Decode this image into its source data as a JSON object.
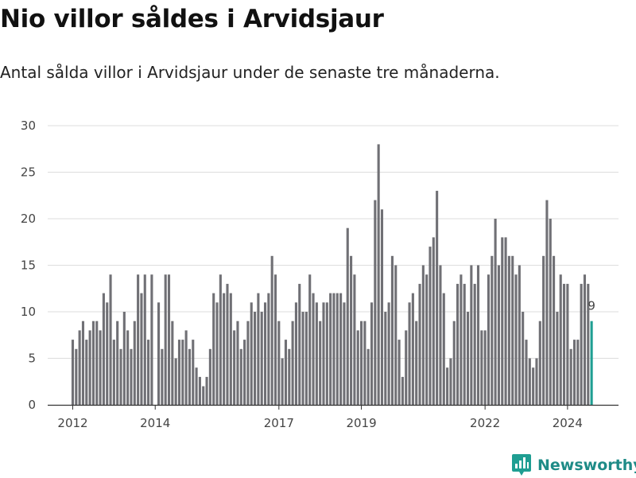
{
  "title": "Nio villor såldes i Arvidsjaur",
  "subtitle": "Antal sålda villor i Arvidsjaur under de senaste tre månaderna.",
  "brand": {
    "name": "Newsworthy",
    "icon": "newsworthy-logo-icon"
  },
  "colors": {
    "bar": "#707075",
    "highlight": "#1f9e92",
    "grid": "#dddddd",
    "axis": "#333333"
  },
  "chart_data": {
    "type": "bar",
    "title": "Nio villor såldes i Arvidsjaur",
    "subtitle": "Antal sålda villor i Arvidsjaur under de senaste tre månaderna.",
    "xlabel": "",
    "ylabel": "",
    "ylim": [
      0,
      30
    ],
    "yticks": [
      0,
      5,
      10,
      15,
      20,
      25,
      30
    ],
    "xticks": [
      {
        "label": "2012",
        "index": 0
      },
      {
        "label": "2014",
        "index": 24
      },
      {
        "label": "2017",
        "index": 60
      },
      {
        "label": "2019",
        "index": 84
      },
      {
        "label": "2022",
        "index": 120
      },
      {
        "label": "2024",
        "index": 144
      }
    ],
    "grid": true,
    "frequency": "monthly (rolling three-month total)",
    "start": "2012-01",
    "values": [
      7,
      6,
      8,
      9,
      7,
      8,
      9,
      9,
      8,
      12,
      11,
      14,
      7,
      9,
      6,
      10,
      8,
      6,
      9,
      14,
      12,
      14,
      7,
      14,
      0,
      11,
      6,
      14,
      14,
      9,
      5,
      7,
      7,
      8,
      6,
      7,
      4,
      3,
      2,
      3,
      6,
      12,
      11,
      14,
      12,
      13,
      12,
      8,
      9,
      6,
      7,
      9,
      11,
      10,
      12,
      10,
      11,
      12,
      16,
      14,
      9,
      5,
      7,
      6,
      9,
      11,
      13,
      10,
      10,
      14,
      12,
      11,
      9,
      11,
      11,
      12,
      12,
      12,
      12,
      11,
      19,
      16,
      14,
      8,
      9,
      9,
      6,
      11,
      22,
      28,
      21,
      10,
      11,
      16,
      15,
      7,
      3,
      8,
      11,
      12,
      9,
      13,
      15,
      14,
      17,
      18,
      23,
      15,
      12,
      4,
      5,
      9,
      13,
      14,
      13,
      10,
      15,
      13,
      15,
      8,
      8,
      14,
      16,
      20,
      15,
      18,
      18,
      16,
      16,
      14,
      15,
      10,
      7,
      5,
      4,
      5,
      9,
      16,
      22,
      20,
      16,
      10,
      14,
      13,
      13,
      6,
      7,
      7,
      13,
      14,
      13,
      9
    ],
    "highlight_last": {
      "value": 9,
      "label": "9"
    }
  }
}
